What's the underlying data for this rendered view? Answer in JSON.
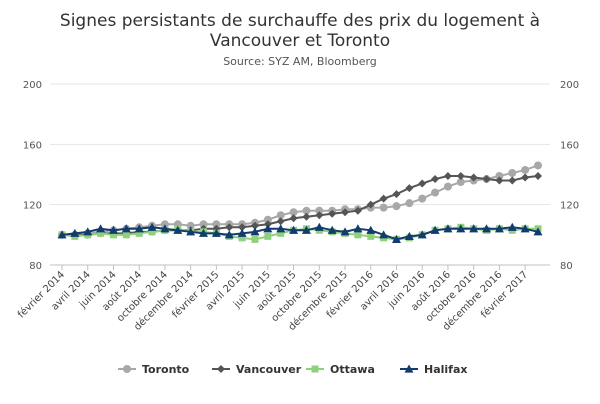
{
  "chart_data": {
    "type": "line",
    "title_line1": "Signes persistants de surchauffe des prix du logement à",
    "title_line2": "Vancouver et Toronto",
    "subtitle": "Source: SYZ AM, Bloomberg",
    "ylim": [
      80,
      200
    ],
    "yticks": [
      80,
      120,
      160,
      200
    ],
    "grid": true,
    "legend_position": "bottom",
    "x": [
      "2014-02",
      "2014-03",
      "2014-04",
      "2014-05",
      "2014-06",
      "2014-07",
      "2014-08",
      "2014-09",
      "2014-10",
      "2014-11",
      "2014-12",
      "2015-01",
      "2015-02",
      "2015-03",
      "2015-04",
      "2015-05",
      "2015-06",
      "2015-07",
      "2015-08",
      "2015-09",
      "2015-10",
      "2015-11",
      "2015-12",
      "2016-01",
      "2016-02",
      "2016-03",
      "2016-04",
      "2016-05",
      "2016-06",
      "2016-07",
      "2016-08",
      "2016-09",
      "2016-10",
      "2016-11",
      "2016-12",
      "2017-01",
      "2017-02",
      "2017-03"
    ],
    "x_tick_labels": [
      {
        "index": 0,
        "label": "février 2014"
      },
      {
        "index": 2,
        "label": "avril 2014"
      },
      {
        "index": 4,
        "label": "juin 2014"
      },
      {
        "index": 6,
        "label": "août 2014"
      },
      {
        "index": 8,
        "label": "octobre 2014"
      },
      {
        "index": 10,
        "label": "décembre 2014"
      },
      {
        "index": 12,
        "label": "février 2015"
      },
      {
        "index": 14,
        "label": "avril 2015"
      },
      {
        "index": 16,
        "label": "juin 2015"
      },
      {
        "index": 18,
        "label": "août 2015"
      },
      {
        "index": 20,
        "label": "octobre 2015"
      },
      {
        "index": 22,
        "label": "décembre 2015"
      },
      {
        "index": 24,
        "label": "février 2016"
      },
      {
        "index": 26,
        "label": "avril 2016"
      },
      {
        "index": 28,
        "label": "juin 2016"
      },
      {
        "index": 30,
        "label": "août 2016"
      },
      {
        "index": 32,
        "label": "octobre 2016"
      },
      {
        "index": 34,
        "label": "décembre 2016"
      },
      {
        "index": 36,
        "label": "février 2017"
      }
    ],
    "series": [
      {
        "name": "Toronto",
        "color": "#a8a8a8",
        "marker": "circle",
        "values": [
          100,
          100,
          101,
          102,
          103,
          104,
          105,
          106,
          107,
          107,
          106,
          107,
          107,
          107,
          107,
          108,
          110,
          113,
          115,
          116,
          116,
          116,
          117,
          117,
          118,
          118,
          119,
          121,
          124,
          128,
          132,
          135,
          136,
          137,
          139,
          141,
          143,
          146
        ]
      },
      {
        "name": "Vancouver",
        "color": "#555555",
        "marker": "diamond",
        "values": [
          100,
          100,
          100,
          101,
          101,
          101,
          102,
          102,
          103,
          103,
          103,
          104,
          104,
          105,
          105,
          106,
          107,
          109,
          111,
          112,
          113,
          114,
          115,
          116,
          120,
          124,
          127,
          131,
          134,
          137,
          139,
          139,
          138,
          137,
          136,
          136,
          138,
          139
        ]
      },
      {
        "name": "Ottawa",
        "color": "#8fd17a",
        "marker": "square",
        "values": [
          100,
          99,
          100,
          101,
          100,
          100,
          101,
          102,
          103,
          104,
          102,
          102,
          101,
          99,
          98,
          97,
          99,
          101,
          103,
          104,
          103,
          102,
          101,
          100,
          99,
          98,
          97,
          98,
          100,
          103,
          104,
          105,
          104,
          103,
          104,
          103,
          104,
          104
        ]
      },
      {
        "name": "Halifax",
        "color": "#123c6e",
        "marker": "triangle",
        "values": [
          100,
          101,
          102,
          104,
          103,
          104,
          104,
          105,
          104,
          103,
          102,
          101,
          101,
          100,
          101,
          102,
          104,
          104,
          103,
          103,
          105,
          103,
          102,
          104,
          103,
          100,
          97,
          99,
          100,
          103,
          104,
          104,
          104,
          104,
          104,
          105,
          104,
          102
        ]
      }
    ]
  }
}
